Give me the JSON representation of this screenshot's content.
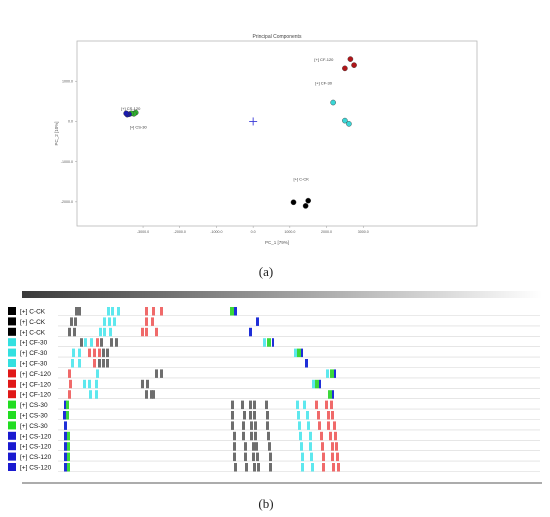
{
  "captions": {
    "a": "(a)",
    "b": "(b)"
  },
  "colors": {
    "C-CK": "#000000",
    "CF-30": "#3ad6d6",
    "CF-120": "#b0161a",
    "CS-30": "#2fb52f",
    "CS-120": "#1a1ab0",
    "lane_CK": "#000000",
    "lane_CF30": "#33e0e0",
    "lane_CF120": "#e01818",
    "lane_CS30": "#22dd22",
    "lane_CS120": "#1a1ad0",
    "band_gray": "#6e6e6e",
    "band_cyan": "#5ee8ee",
    "band_red": "#f06a6a",
    "band_blue": "#1f2fd8",
    "band_green": "#3bd83b"
  },
  "chart_data": [
    {
      "type": "scatter",
      "title": "Principal Components",
      "xlabel": "PC_1 [79%]",
      "ylabel": "PC_2 [10%]",
      "xlim": [
        -4800,
        6100
      ],
      "ylim": [
        -2600,
        2000
      ],
      "xticks": [
        -3000,
        -2000,
        -1000,
        0,
        1000,
        2000,
        3000
      ],
      "xtick_labels": [
        "-3000.0",
        "-2000.0",
        "-1000.0",
        "0.0",
        "1000.0",
        "2000.0",
        "3000.0"
      ],
      "yticks": [
        1000,
        0,
        -1000,
        -2000
      ],
      "ytick_labels": [
        "1000.0",
        "0.0",
        "-1000.0",
        "-2000.0"
      ],
      "origin_marker": "+",
      "series": [
        {
          "name": "C-CK",
          "color": "#000000",
          "label": "[+] C-CK",
          "points": [
            [
              1100,
              -2010
            ],
            [
              1500,
              -1970
            ],
            [
              1430,
              -2100
            ]
          ]
        },
        {
          "name": "CF-30",
          "color": "#3ad6d6",
          "label": "[+] CF-30",
          "points": [
            [
              2180,
              470
            ],
            [
              2500,
              20
            ],
            [
              2610,
              -60
            ]
          ]
        },
        {
          "name": "CF-120",
          "color": "#b0161a",
          "label": "[+] CF-120",
          "points": [
            [
              2650,
              1550
            ],
            [
              2750,
              1400
            ],
            [
              2500,
              1320
            ]
          ]
        },
        {
          "name": "CS-30",
          "color": "#2fb52f",
          "label": "[+] CS-30",
          "points": [
            [
              -3200,
              220
            ],
            [
              -3250,
              190
            ],
            [
              -3320,
              200
            ]
          ]
        },
        {
          "name": "CS-120",
          "color": "#1a1ab0",
          "label": "[+] CS-120",
          "points": [
            [
              -3380,
              180
            ],
            [
              -3430,
              170
            ],
            [
              -3460,
              200
            ]
          ]
        }
      ]
    },
    {
      "type": "table",
      "lanes": [
        {
          "label": "[+] C-CK",
          "group": "CK"
        },
        {
          "label": "[+] C-CK",
          "group": "CK"
        },
        {
          "label": "[+] C-CK",
          "group": "CK"
        },
        {
          "label": "[+] CF-30",
          "group": "CF30"
        },
        {
          "label": "[+] CF-30",
          "group": "CF30"
        },
        {
          "label": "[+] CF-30",
          "group": "CF30"
        },
        {
          "label": "[+] CF-120",
          "group": "CF120"
        },
        {
          "label": "[+] CF-120",
          "group": "CF120"
        },
        {
          "label": "[+] CF-120",
          "group": "CF120"
        },
        {
          "label": "[+] CS-30",
          "group": "CS30"
        },
        {
          "label": "[+] CS-30",
          "group": "CS30"
        },
        {
          "label": "[+] CS-30",
          "group": "CS30"
        },
        {
          "label": "[+] CS-120",
          "group": "CS120"
        },
        {
          "label": "[+] CS-120",
          "group": "CS120"
        },
        {
          "label": "[+] CS-120",
          "group": "CS120"
        },
        {
          "label": "[+] CS-120",
          "group": "CS120"
        }
      ]
    }
  ]
}
